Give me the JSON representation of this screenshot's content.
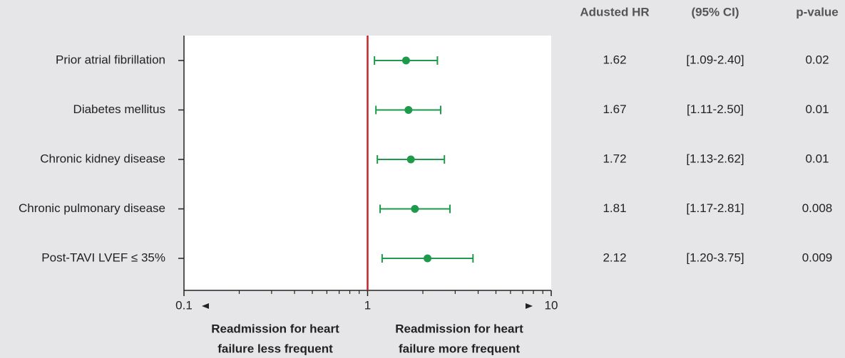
{
  "chart_data": {
    "type": "forest",
    "categories": [
      "Prior atrial fibrillation",
      "Diabetes mellitus",
      "Chronic kidney disease",
      "Chronic pulmonary disease",
      "Post-TAVI LVEF ≤ 35%"
    ],
    "series": [
      {
        "color": "#1e9a4c",
        "values": [
          1.62,
          1.67,
          1.72,
          1.81,
          2.12
        ],
        "lower": [
          1.09,
          1.11,
          1.13,
          1.17,
          1.2
        ],
        "upper": [
          2.4,
          2.5,
          2.62,
          2.81,
          3.75
        ],
        "ci_labels": [
          "[1.09-2.40]",
          "[1.11-2.50]",
          "[1.13-2.62]",
          "[1.17-2.81]",
          "[1.20-3.75]"
        ],
        "p_values": [
          0.02,
          0.01,
          0.01,
          0.008,
          0.009
        ]
      }
    ],
    "table_headers": [
      "Adusted HR",
      "(95% CI)",
      "p-value"
    ],
    "xlim": [
      0.1,
      10
    ],
    "xticks": [
      0.1,
      1,
      10
    ],
    "xminorticks": [
      0.2,
      0.3,
      0.4,
      0.5,
      0.6,
      0.7,
      0.8,
      0.9,
      2,
      3,
      4,
      5,
      6,
      7,
      8,
      9
    ],
    "log_x": true,
    "reference_line": 1,
    "reference_color": "#c0272d",
    "annotations": [
      [
        "Readmission for heart",
        "failure less frequent"
      ],
      [
        "Readmission for heart",
        "failure more frequent"
      ]
    ]
  }
}
